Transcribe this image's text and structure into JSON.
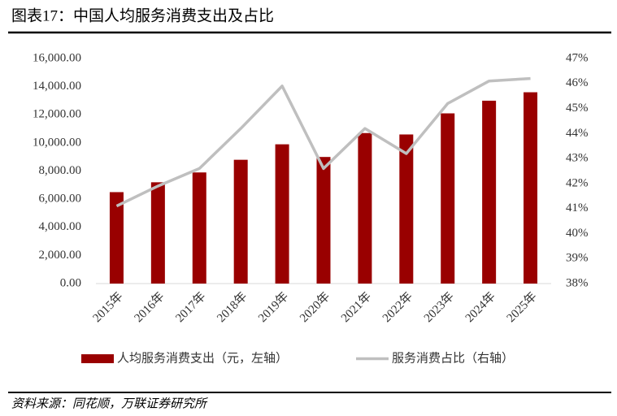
{
  "chart_data": {
    "type": "bar-line",
    "title": "图表17：中国人均服务消费支出及占比",
    "source": "资料来源：同花顺，万联证券研究所",
    "categories": [
      "2015年",
      "2016年",
      "2017年",
      "2018年",
      "2019年",
      "2020年",
      "2021年",
      "2022年",
      "2023年",
      "2024年",
      "2025年"
    ],
    "series": [
      {
        "name": "人均服务消费支出（元，左轴）",
        "type": "bar",
        "color": "#990000",
        "values": [
          6500,
          7200,
          7900,
          8800,
          9900,
          9000,
          10700,
          10600,
          12100,
          13000,
          13600
        ]
      },
      {
        "name": "服务消费占比（右轴）",
        "type": "line",
        "axis": "y2",
        "color": "#bfbfbf",
        "values": [
          41.1,
          41.9,
          42.6,
          44.2,
          45.9,
          42.6,
          44.2,
          43.2,
          45.2,
          46.1,
          46.2
        ]
      }
    ],
    "ylim": [
      0,
      16000
    ],
    "yticks": [
      {
        "value": 0,
        "label": "0.00"
      },
      {
        "value": 2000,
        "label": "2,000.00"
      },
      {
        "value": 4000,
        "label": "4,000.00"
      },
      {
        "value": 6000,
        "label": "6,000.00"
      },
      {
        "value": 8000,
        "label": "8,000.00"
      },
      {
        "value": 10000,
        "label": "10,000.00"
      },
      {
        "value": 12000,
        "label": "12,000.00"
      },
      {
        "value": 14000,
        "label": "14,000.00"
      },
      {
        "value": 16000,
        "label": "16,000.00"
      }
    ],
    "y2lim": [
      38,
      47
    ],
    "y2ticks": [
      {
        "value": 38,
        "label": "38%"
      },
      {
        "value": 39,
        "label": "39%"
      },
      {
        "value": 40,
        "label": "40%"
      },
      {
        "value": 41,
        "label": "41%"
      },
      {
        "value": 42,
        "label": "42%"
      },
      {
        "value": 43,
        "label": "43%"
      },
      {
        "value": 44,
        "label": "44%"
      },
      {
        "value": 45,
        "label": "45%"
      },
      {
        "value": 46,
        "label": "46%"
      },
      {
        "value": 47,
        "label": "47%"
      }
    ],
    "grid": false
  }
}
